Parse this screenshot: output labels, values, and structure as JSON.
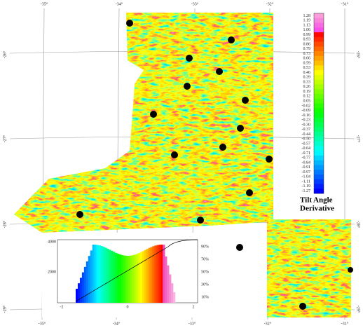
{
  "graticule": {
    "top": [
      "-35°",
      "-34°",
      "-33°",
      "-32°",
      "-31°"
    ],
    "bottom": [
      "-35°",
      "-34°",
      "-33°",
      "-32°",
      "-31°"
    ],
    "left": [
      "-26°",
      "-27°",
      "-28°",
      "-29°"
    ],
    "right": [
      "-26°",
      "-27°",
      "-28°",
      "-29°"
    ]
  },
  "legend": {
    "labels": [
      "1.28",
      "1.19",
      "1.13",
      "1.06",
      "0.99",
      "0.93",
      "0.86",
      "0.79",
      "0.73",
      "0.66",
      "0.59",
      "0.53",
      "0.46",
      "0.39",
      "0.33",
      "0.26",
      "0.19",
      "0.12",
      "0.05",
      "-0.02",
      "-0.09",
      "-0.16",
      "-0.23",
      "-0.30",
      "-0.37",
      "-0.44",
      "-0.50",
      "-0.57",
      "-0.64",
      "-0.71",
      "-0.77",
      "-0.84",
      "-0.91",
      "-0.97",
      "-1.04",
      "-1.11",
      "-1.19",
      "-1.27"
    ],
    "title_lines": [
      "Tilt Angle",
      "Derivative"
    ]
  },
  "histogram": {
    "y_labels": [
      "4000",
      "2000"
    ],
    "x_labels": [
      "-2",
      "0",
      "2"
    ],
    "cumulative_labels": [
      "90%",
      "70%",
      "50%",
      "30%",
      "10%"
    ]
  }
}
